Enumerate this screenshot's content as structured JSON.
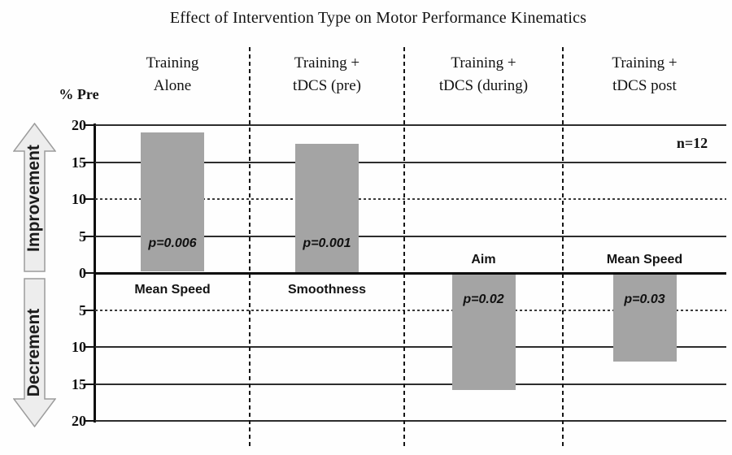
{
  "figure": {
    "title": "Effect of Intervention Type on Motor Performance Kinematics",
    "sample_size_label": "n=12",
    "y_axis_unit_label": "% Pre",
    "direction_labels": {
      "up": "Improvement",
      "down": "Decrement"
    }
  },
  "chart_data": {
    "type": "bar",
    "title": "Effect of Intervention Type on Motor Performance Kinematics",
    "xlabel": "",
    "ylabel": "% Pre",
    "ylim": [
      -20,
      20
    ],
    "ytick_interval": 5,
    "ytick_labels_shown_as_absolute": true,
    "yticks_displayed": [
      "20",
      "15",
      "10",
      "5",
      "0",
      "5",
      "10",
      "15",
      "20"
    ],
    "grid": "horizontal line every 5 units; dashed vertical separators between categories",
    "legend": null,
    "categories": [
      "Training Alone",
      "Training + tDCS (pre)",
      "Training + tDCS (during)",
      "Training + tDCS post"
    ],
    "category_header_lines": [
      [
        "Training",
        "Alone"
      ],
      [
        "Training +",
        "tDCS (pre)"
      ],
      [
        "Training +",
        "tDCS (during)"
      ],
      [
        "Training +",
        "tDCS post"
      ]
    ],
    "series": [
      {
        "name": "% change vs pre",
        "values": [
          19,
          17.5,
          -15.8,
          -12
        ]
      }
    ],
    "bar_measure_labels": [
      "Mean Speed",
      "Smoothness",
      "Aim",
      "Mean Speed"
    ],
    "p_value_labels": [
      "p=0.006",
      "p=0.001",
      "p=0.02",
      "p=0.03"
    ],
    "sample_size_label": "n=12",
    "direction_labels": {
      "up": "Improvement",
      "down": "Decrement"
    },
    "bar_color": "#a4a4a4"
  }
}
